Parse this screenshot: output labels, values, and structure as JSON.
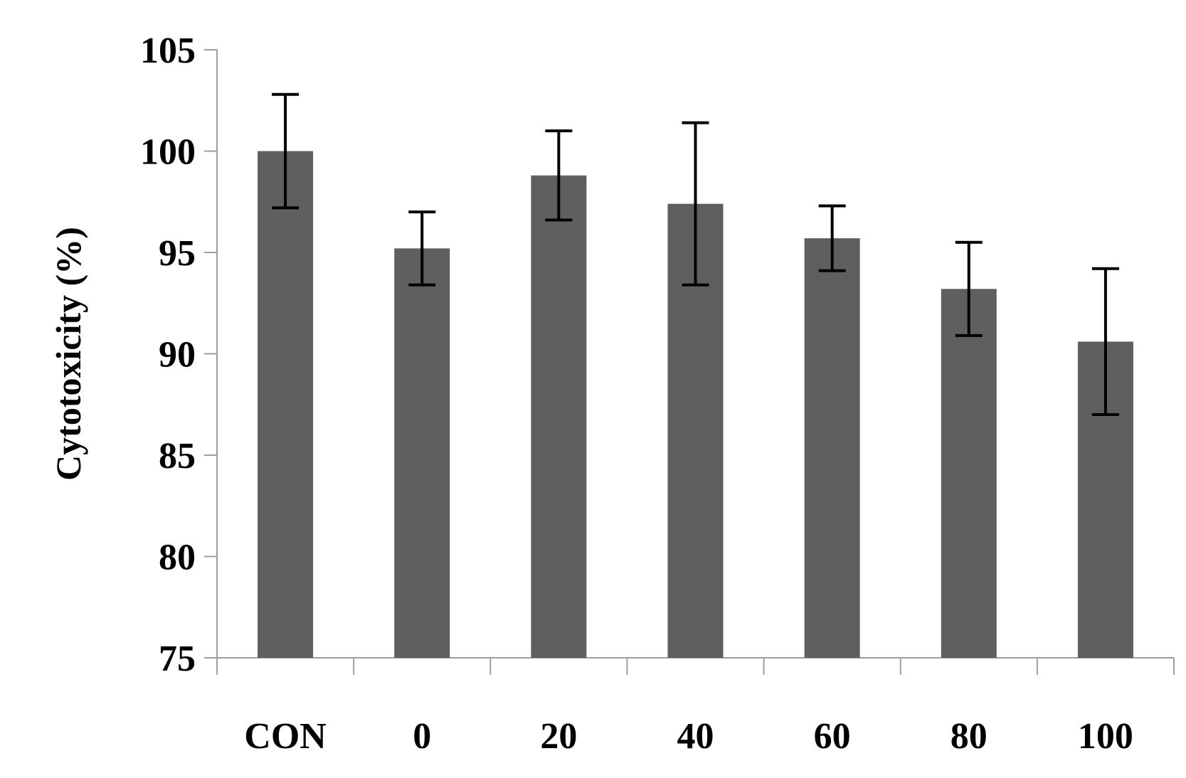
{
  "chart_data": {
    "type": "bar",
    "categories": [
      "CON",
      "0",
      "20",
      "40",
      "60",
      "80",
      "100"
    ],
    "values": [
      100.0,
      95.2,
      98.8,
      97.4,
      95.7,
      93.2,
      90.6
    ],
    "error": [
      2.8,
      1.8,
      2.2,
      4.0,
      1.6,
      2.3,
      3.6
    ],
    "title": "",
    "xlabel": "",
    "ylabel": "Cytotoxicity (%)",
    "ylim": [
      75,
      105
    ],
    "yticks": [
      75,
      80,
      85,
      90,
      95,
      100,
      105
    ],
    "grid": false,
    "legend": "none",
    "colors": {
      "bar": "#5f5f5f",
      "error_bar": "#000000",
      "axis": "#9e9e9e"
    }
  }
}
